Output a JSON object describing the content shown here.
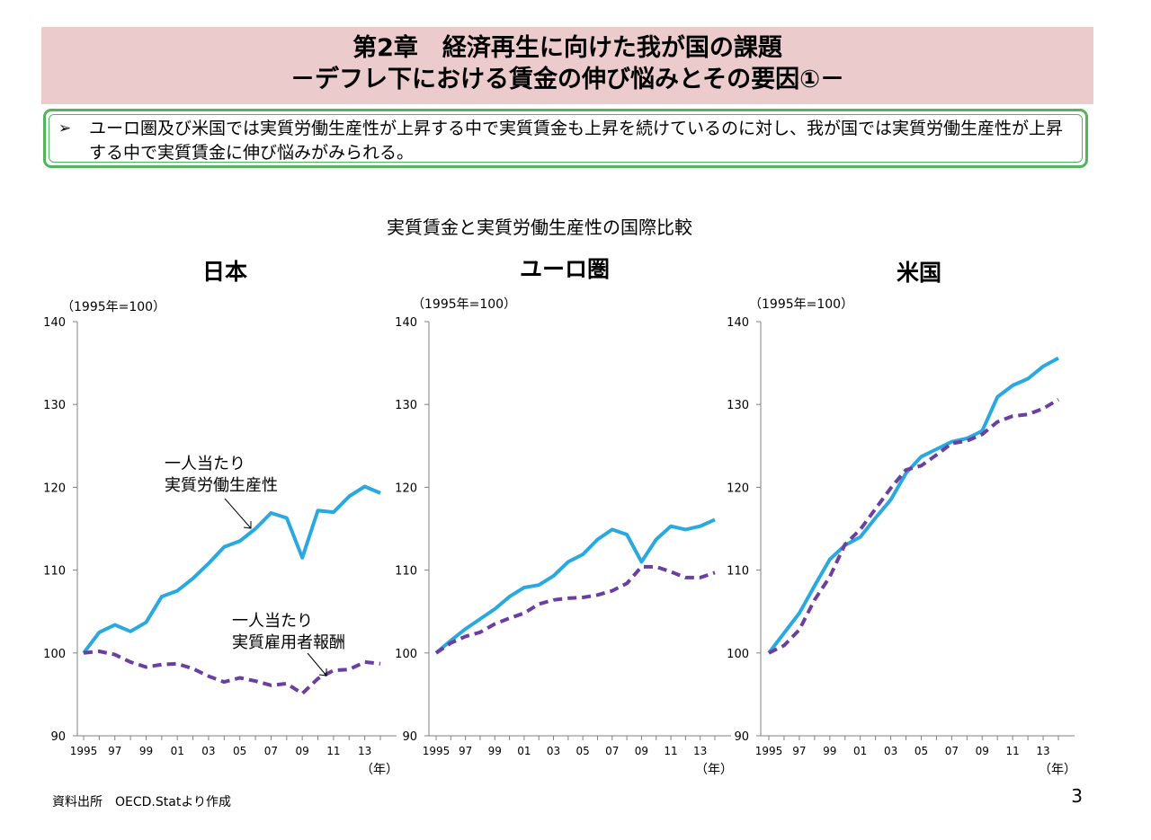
{
  "header": {
    "line1": "第2章　経済再生に向けた我が国の課題",
    "line2": "－デフレ下における賃金の伸び悩みとその要因①－"
  },
  "summary": {
    "bullet": "➢",
    "text": "ユーロ圏及び米国では実質労働生産性が上昇する中で実質賃金も上昇を続けているのに対し、我が国では実質労働生産性が上昇する中で実質賃金に伸び悩みがみられる。"
  },
  "subtitle": "実質賃金と実質労働生産性の国際比較",
  "source": "資料出所　OECD.Statより作成",
  "page_number": "3",
  "colors": {
    "productivity": "#2aa9e0",
    "compensation": "#6b3fa0",
    "header_bg": "#eccbcd",
    "frame": "#55b35e"
  },
  "chart_data": [
    {
      "type": "line",
      "title": "日本",
      "unit_label": "（1995年=100）",
      "xlabel": "（年）",
      "ylim": [
        90,
        140
      ],
      "yticks": [
        90,
        100,
        110,
        120,
        130,
        140
      ],
      "x": [
        1995,
        1996,
        1997,
        1998,
        1999,
        2000,
        2001,
        2002,
        2003,
        2004,
        2005,
        2006,
        2007,
        2008,
        2009,
        2010,
        2011,
        2012,
        2013,
        2014
      ],
      "xtick_labels": [
        "1995",
        "97",
        "99",
        "01",
        "03",
        "05",
        "07",
        "09",
        "11",
        "13"
      ],
      "series": [
        {
          "name": "一人当たり実質労働生産性",
          "style": "solid",
          "values": [
            100,
            102.5,
            103.4,
            102.6,
            103.7,
            106.8,
            107.5,
            109,
            110.8,
            112.8,
            113.5,
            115,
            116.9,
            116.3,
            111.5,
            117.2,
            117,
            118.9,
            120.1,
            119.3
          ]
        },
        {
          "name": "一人当たり実質雇用者報酬",
          "style": "dashed",
          "values": [
            100,
            100.2,
            99.8,
            98.9,
            98.3,
            98.6,
            98.7,
            98.1,
            97.2,
            96.5,
            97,
            96.6,
            96.1,
            96.3,
            95.1,
            96.9,
            97.9,
            98,
            98.9,
            98.7
          ]
        }
      ],
      "annotations": [
        {
          "lines": [
            "一人当たり",
            "実質労働生産性"
          ]
        },
        {
          "lines": [
            "一人当たり",
            "実質雇用者報酬"
          ]
        }
      ]
    },
    {
      "type": "line",
      "title": "ユーロ圏",
      "unit_label": "（1995年=100）",
      "xlabel": "（年）",
      "ylim": [
        90,
        140
      ],
      "yticks": [
        90,
        100,
        110,
        120,
        130,
        140
      ],
      "x": [
        1995,
        1996,
        1997,
        1998,
        1999,
        2000,
        2001,
        2002,
        2003,
        2004,
        2005,
        2006,
        2007,
        2008,
        2009,
        2010,
        2011,
        2012,
        2013,
        2014
      ],
      "xtick_labels": [
        "1995",
        "97",
        "99",
        "01",
        "03",
        "05",
        "07",
        "09",
        "11",
        "13"
      ],
      "series": [
        {
          "style": "solid",
          "values": [
            100,
            101.5,
            102.9,
            104.1,
            105.3,
            106.8,
            107.9,
            108.2,
            109.3,
            111,
            111.9,
            113.7,
            114.9,
            114.3,
            111,
            113.7,
            115.3,
            114.9,
            115.3,
            116.1
          ]
        },
        {
          "style": "dashed",
          "values": [
            100,
            101.2,
            102,
            102.5,
            103.5,
            104.2,
            104.8,
            105.9,
            106.4,
            106.6,
            106.7,
            107,
            107.5,
            108.4,
            110.4,
            110.4,
            109.8,
            109.1,
            109.1,
            109.7
          ]
        }
      ]
    },
    {
      "type": "line",
      "title": "米国",
      "unit_label": "（1995年=100）",
      "xlabel": "（年）",
      "ylim": [
        90,
        140
      ],
      "yticks": [
        90,
        100,
        110,
        120,
        130,
        140
      ],
      "x": [
        1995,
        1996,
        1997,
        1998,
        1999,
        2000,
        2001,
        2002,
        2003,
        2004,
        2005,
        2006,
        2007,
        2008,
        2009,
        2010,
        2011,
        2012,
        2013,
        2014
      ],
      "xtick_labels": [
        "1995",
        "97",
        "99",
        "01",
        "03",
        "05",
        "07",
        "09",
        "11",
        "13"
      ],
      "series": [
        {
          "style": "solid",
          "values": [
            100,
            102.4,
            104.8,
            108.1,
            111.3,
            113,
            114,
            116.3,
            118.5,
            121.7,
            123.7,
            124.6,
            125.5,
            125.9,
            126.8,
            130.9,
            132.3,
            133.1,
            134.6,
            135.6
          ]
        },
        {
          "style": "dashed",
          "values": [
            100,
            100.9,
            102.8,
            106.4,
            109.2,
            113.1,
            114.9,
            117.4,
            119.9,
            122.1,
            122.6,
            123.9,
            125.3,
            125.6,
            126.4,
            127.9,
            128.6,
            128.8,
            129.5,
            130.6
          ]
        }
      ]
    }
  ]
}
